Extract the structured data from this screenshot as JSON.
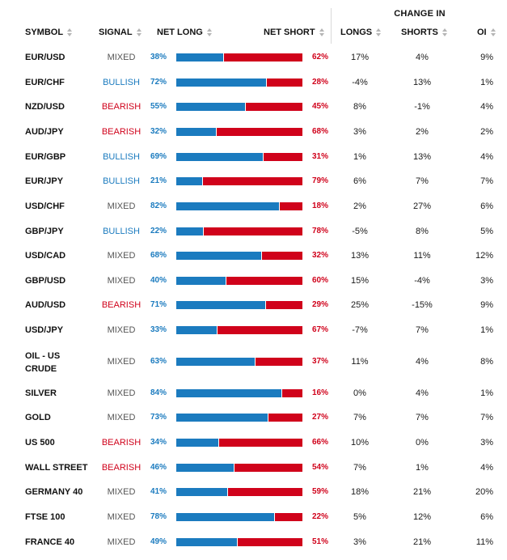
{
  "header": {
    "change_in": "CHANGE IN",
    "symbol": "SYMBOL",
    "signal": "SIGNAL",
    "net_long": "NET LONG",
    "net_short": "NET SHORT",
    "longs": "LONGS",
    "shorts": "SHORTS",
    "oi": "OI"
  },
  "colors": {
    "long": "#1b7bbf",
    "short": "#d0021b",
    "mixed": "#555555"
  },
  "rows": [
    {
      "symbol": "EUR/USD",
      "signal": "MIXED",
      "net_long": "38%",
      "net_short": "62%",
      "longs": "17%",
      "shorts": "4%",
      "oi": "9%",
      "long_fraction": 0.38
    },
    {
      "symbol": "EUR/CHF",
      "signal": "BULLISH",
      "net_long": "72%",
      "net_short": "28%",
      "longs": "-4%",
      "shorts": "13%",
      "oi": "1%",
      "long_fraction": 0.72
    },
    {
      "symbol": "NZD/USD",
      "signal": "BEARISH",
      "net_long": "55%",
      "net_short": "45%",
      "longs": "8%",
      "shorts": "-1%",
      "oi": "4%",
      "long_fraction": 0.55
    },
    {
      "symbol": "AUD/JPY",
      "signal": "BEARISH",
      "net_long": "32%",
      "net_short": "68%",
      "longs": "3%",
      "shorts": "2%",
      "oi": "2%",
      "long_fraction": 0.32
    },
    {
      "symbol": "EUR/GBP",
      "signal": "BULLISH",
      "net_long": "69%",
      "net_short": "31%",
      "longs": "1%",
      "shorts": "13%",
      "oi": "4%",
      "long_fraction": 0.69
    },
    {
      "symbol": "EUR/JPY",
      "signal": "BULLISH",
      "net_long": "21%",
      "net_short": "79%",
      "longs": "6%",
      "shorts": "7%",
      "oi": "7%",
      "long_fraction": 0.21
    },
    {
      "symbol": "USD/CHF",
      "signal": "MIXED",
      "net_long": "82%",
      "net_short": "18%",
      "longs": "2%",
      "shorts": "27%",
      "oi": "6%",
      "long_fraction": 0.82
    },
    {
      "symbol": "GBP/JPY",
      "signal": "BULLISH",
      "net_long": "22%",
      "net_short": "78%",
      "longs": "-5%",
      "shorts": "8%",
      "oi": "5%",
      "long_fraction": 0.22
    },
    {
      "symbol": "USD/CAD",
      "signal": "MIXED",
      "net_long": "68%",
      "net_short": "32%",
      "longs": "13%",
      "shorts": "11%",
      "oi": "12%",
      "long_fraction": 0.68
    },
    {
      "symbol": "GBP/USD",
      "signal": "MIXED",
      "net_long": "40%",
      "net_short": "60%",
      "longs": "15%",
      "shorts": "-4%",
      "oi": "3%",
      "long_fraction": 0.4
    },
    {
      "symbol": "AUD/USD",
      "signal": "BEARISH",
      "net_long": "71%",
      "net_short": "29%",
      "longs": "25%",
      "shorts": "-15%",
      "oi": "9%",
      "long_fraction": 0.71
    },
    {
      "symbol": "USD/JPY",
      "signal": "MIXED",
      "net_long": "33%",
      "net_short": "67%",
      "longs": "-7%",
      "shorts": "7%",
      "oi": "1%",
      "long_fraction": 0.33
    },
    {
      "symbol": "OIL - US CRUDE",
      "signal": "MIXED",
      "net_long": "63%",
      "net_short": "37%",
      "longs": "11%",
      "shorts": "4%",
      "oi": "8%",
      "long_fraction": 0.63
    },
    {
      "symbol": "SILVER",
      "signal": "MIXED",
      "net_long": "84%",
      "net_short": "16%",
      "longs": "0%",
      "shorts": "4%",
      "oi": "1%",
      "long_fraction": 0.84
    },
    {
      "symbol": "GOLD",
      "signal": "MIXED",
      "net_long": "73%",
      "net_short": "27%",
      "longs": "7%",
      "shorts": "7%",
      "oi": "7%",
      "long_fraction": 0.73
    },
    {
      "symbol": "US 500",
      "signal": "BEARISH",
      "net_long": "34%",
      "net_short": "66%",
      "longs": "10%",
      "shorts": "0%",
      "oi": "3%",
      "long_fraction": 0.34
    },
    {
      "symbol": "WALL STREET",
      "signal": "BEARISH",
      "net_long": "46%",
      "net_short": "54%",
      "longs": "7%",
      "shorts": "1%",
      "oi": "4%",
      "long_fraction": 0.46
    },
    {
      "symbol": "GERMANY 40",
      "signal": "MIXED",
      "net_long": "41%",
      "net_short": "59%",
      "longs": "18%",
      "shorts": "21%",
      "oi": "20%",
      "long_fraction": 0.41
    },
    {
      "symbol": "FTSE 100",
      "signal": "MIXED",
      "net_long": "78%",
      "net_short": "22%",
      "longs": "5%",
      "shorts": "12%",
      "oi": "6%",
      "long_fraction": 0.78
    },
    {
      "symbol": "FRANCE 40",
      "signal": "MIXED",
      "net_long": "49%",
      "net_short": "51%",
      "longs": "3%",
      "shorts": "21%",
      "oi": "11%",
      "long_fraction": 0.49
    }
  ]
}
